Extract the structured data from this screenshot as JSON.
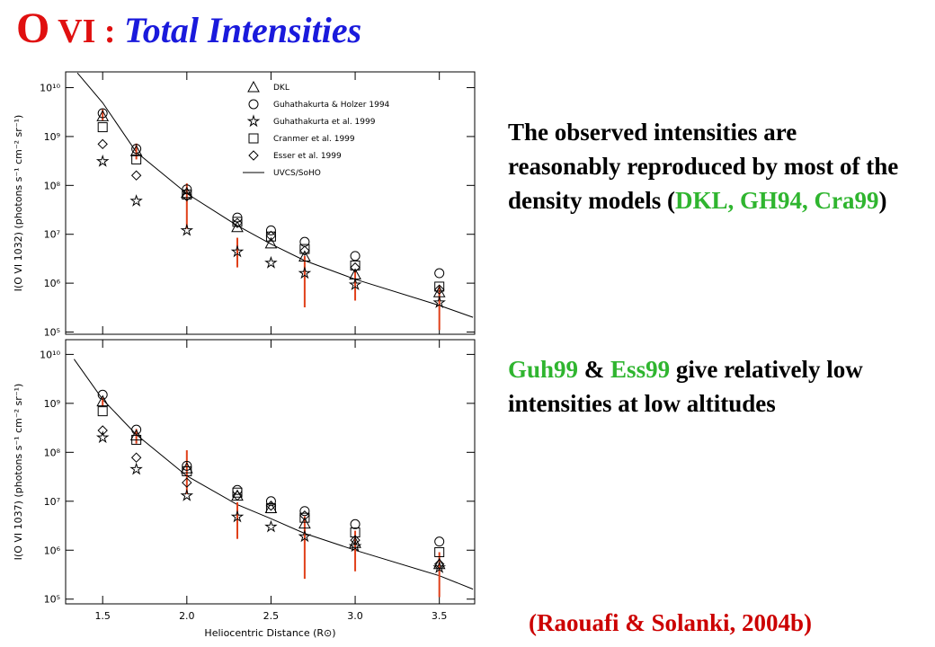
{
  "title": [
    {
      "text": "O",
      "color": "#e01010",
      "size": 48,
      "italic": false
    },
    {
      "text": " VI : ",
      "color": "#e01010",
      "size": 38,
      "italic": false
    },
    {
      "text": "Total Intensities",
      "color": "#1a1adc",
      "size": 40,
      "italic": true
    }
  ],
  "paragraphs": [
    [
      {
        "text": "The observed intensities are reasonably reproduced  by most of the density models (",
        "color": "#000000"
      },
      {
        "text": "DKL, GH94, Cra99",
        "color": "#2fb52f"
      },
      {
        "text": ")",
        "color": "#000000"
      }
    ],
    [
      {
        "text": "Guh99",
        "color": "#2fb52f"
      },
      {
        "text": " & ",
        "color": "#000000"
      },
      {
        "text": "Ess99",
        "color": "#2fb52f"
      },
      {
        "text": " give relatively low intensities at low altitudes",
        "color": "#000000"
      }
    ]
  ],
  "citation": {
    "text": "(Raouafi & Solanki, 2004b)",
    "color": "#cc0000"
  },
  "chart_data": [
    {
      "type": "scatter",
      "ylabel": "I(O VI 1032) (photons s⁻¹ cm⁻² sr⁻¹)",
      "log_y": true,
      "xlim": [
        1.28,
        3.71
      ],
      "ylim": [
        90000,
        21000000000
      ],
      "xticks": [
        1.5,
        2,
        2.5,
        3,
        3.5
      ],
      "show_xtick_labels": false,
      "yticks": [
        {
          "value": 100000,
          "label": "10⁵"
        },
        {
          "value": 1000000,
          "label": "10⁶"
        },
        {
          "value": 10000000,
          "label": "10⁷"
        },
        {
          "value": 100000000,
          "label": "10⁸"
        },
        {
          "value": 1000000000,
          "label": "10⁹"
        },
        {
          "value": 10000000000,
          "label": "10¹⁰"
        }
      ],
      "legend": "top-center",
      "x": [
        1.5,
        1.7,
        2.0,
        2.3,
        2.5,
        2.7,
        3.0,
        3.5
      ],
      "series": [
        {
          "name": "DKL",
          "marker": "triangle",
          "values": [
            2600000000,
            500000000,
            70000000,
            14000000,
            6500000,
            3500000,
            1500000,
            650000
          ]
        },
        {
          "name": "Guhathakurta & Holzer 1994",
          "marker": "circle",
          "values": [
            3000000000,
            560000000,
            83000000,
            22000000,
            12000000,
            7000000,
            3600000,
            1600000
          ]
        },
        {
          "name": "Guhathakurta et al. 1999",
          "marker": "star",
          "values": [
            310000000,
            48000000,
            12000000,
            4400000,
            2600000,
            1600000,
            930000,
            400000
          ]
        },
        {
          "name": "Cranmer et al. 1999",
          "marker": "square",
          "values": [
            1550000000,
            340000000,
            65000000,
            18000000,
            9000000,
            5000000,
            2300000,
            850000
          ]
        },
        {
          "name": "Esser et al. 1999",
          "marker": "diamond",
          "values": [
            700000000,
            160000000,
            60000000,
            17000000,
            9300000,
            4600000,
            2100000,
            740000
          ]
        }
      ],
      "line": {
        "name": "UVCS/SoHO",
        "x": [
          1.35,
          1.5,
          1.7,
          2.0,
          2.3,
          2.5,
          2.7,
          3.0,
          3.5,
          3.7
        ],
        "values": [
          20000000000,
          4900000000,
          480000000,
          68000000,
          15000000,
          6300000,
          2900000,
          1200000,
          350000,
          200000
        ]
      },
      "error_bars": {
        "color": "#e0401a",
        "x": [
          1.5,
          1.7,
          2.0,
          2.3,
          2.7,
          3.0,
          3.5
        ],
        "low": [
          2100000000,
          340000000,
          13000000,
          2100000,
          320000,
          440000,
          110000
        ],
        "high": [
          3600000000,
          720000000,
          110000000,
          8500000,
          3600000,
          1900000,
          900000
        ]
      }
    },
    {
      "type": "scatter",
      "ylabel": "I(O VI 1037) (photons s⁻¹ cm⁻² sr⁻¹)",
      "xlabel": "Heliocentric Distance (R⊙)",
      "log_y": true,
      "xlim": [
        1.28,
        3.71
      ],
      "ylim": [
        80000,
        20000000000
      ],
      "xticks": [
        1.5,
        {
          "value": 2,
          "label": "2.0"
        },
        2.5,
        {
          "value": 3,
          "label": "3.0"
        },
        3.5
      ],
      "show_xtick_labels": true,
      "yticks": [
        {
          "value": 100000,
          "label": "10⁵"
        },
        {
          "value": 1000000,
          "label": "10⁶"
        },
        {
          "value": 10000000,
          "label": "10⁷"
        },
        {
          "value": 100000000,
          "label": "10⁸"
        },
        {
          "value": 1000000000,
          "label": "10⁹"
        },
        {
          "value": 10000000000,
          "label": "10¹⁰"
        }
      ],
      "x": [
        1.5,
        1.7,
        2.0,
        2.3,
        2.5,
        2.7,
        3.0,
        3.5
      ],
      "series": [
        {
          "marker": "triangle",
          "values": [
            1100000000,
            220000000,
            47000000,
            13000000,
            7200000,
            3500000,
            1400000,
            520000
          ]
        },
        {
          "marker": "circle",
          "values": [
            1500000000,
            290000000,
            53000000,
            17000000,
            10000000,
            6300000,
            3400000,
            1500000
          ]
        },
        {
          "marker": "star",
          "values": [
            200000000,
            45000000,
            13000000,
            4800000,
            3000000,
            1900000,
            1200000,
            440000
          ]
        },
        {
          "marker": "square",
          "values": [
            690000000,
            180000000,
            41000000,
            15000000,
            7200000,
            4600000,
            2300000,
            910000
          ]
        },
        {
          "marker": "diamond",
          "values": [
            280000000,
            78000000,
            24000000,
            13000000,
            8100000,
            5100000,
            1600000,
            520000
          ]
        }
      ],
      "line": {
        "x": [
          1.33,
          1.5,
          1.7,
          2.0,
          2.3,
          2.5,
          2.7,
          3.0,
          3.5,
          3.7
        ],
        "values": [
          8000000000,
          1200000000,
          230000000,
          33000000,
          8500000,
          4400000,
          2200000,
          1000000,
          300000,
          160000
        ]
      },
      "error_bars": {
        "color": "#e0401a",
        "x": [
          1.5,
          1.7,
          2.0,
          2.3,
          2.7,
          3.0,
          3.5
        ],
        "low": [
          890000000,
          150000000,
          14000000,
          1700000,
          260000,
          370000,
          110000
        ],
        "high": [
          1300000000,
          300000000,
          110000000,
          9500000,
          4900000,
          2500000,
          910000
        ]
      }
    }
  ]
}
